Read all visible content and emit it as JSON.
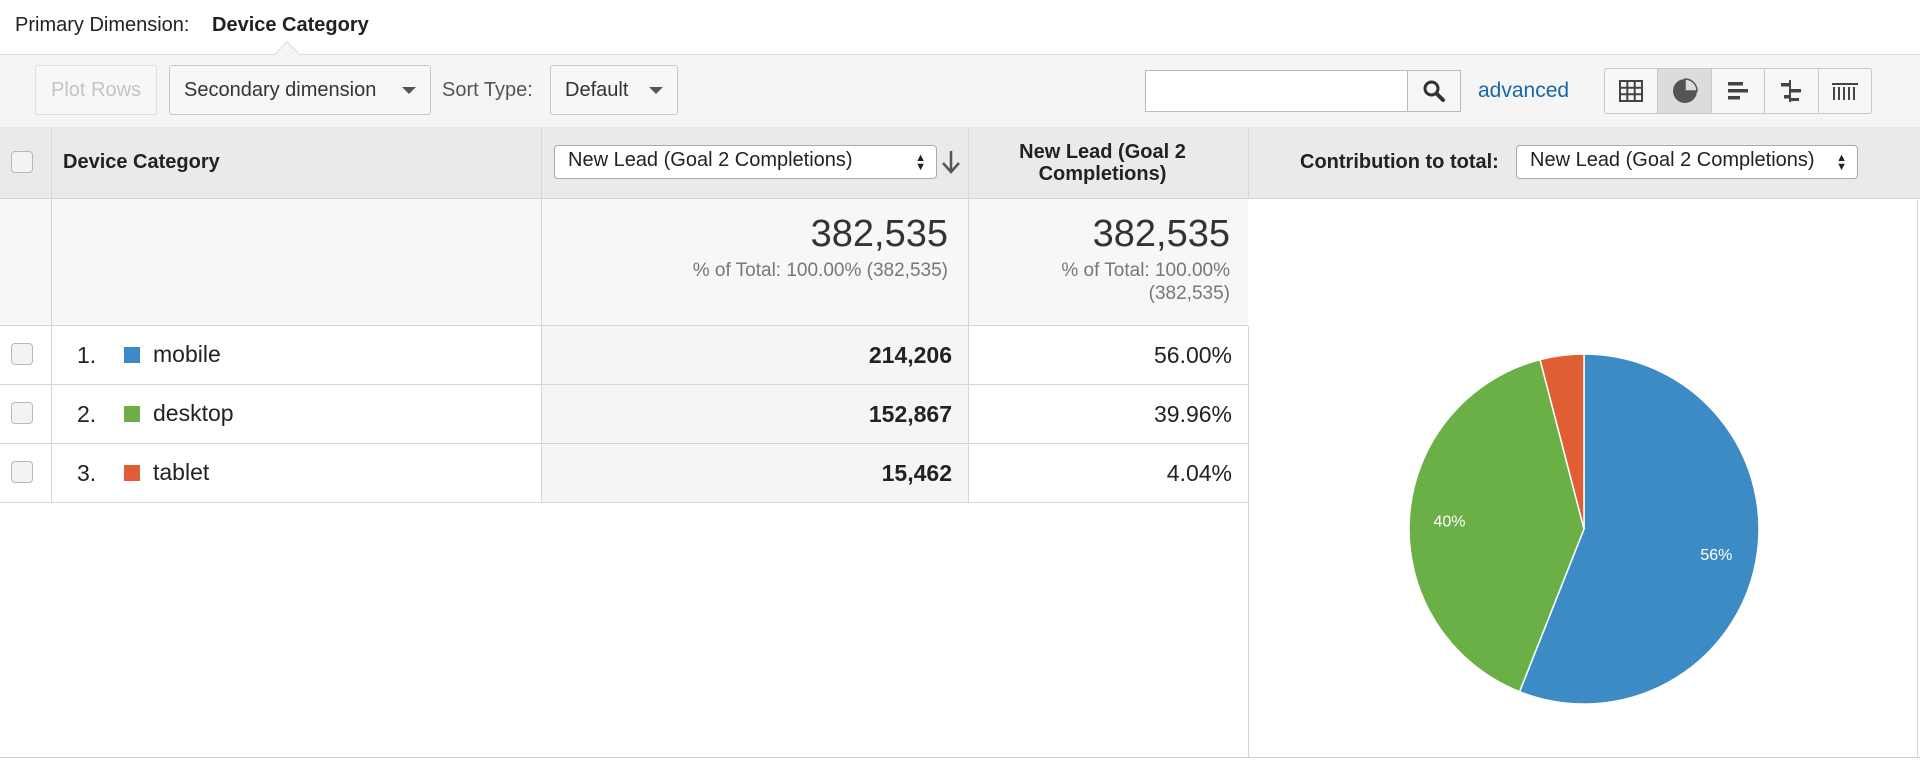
{
  "primary_dimension": {
    "label": "Primary Dimension:",
    "value": "Device Category"
  },
  "toolbar": {
    "plot_rows": "Plot Rows",
    "secondary_dimension": "Secondary dimension",
    "sort_type_label": "Sort Type:",
    "sort_type_value": "Default",
    "search_value": "",
    "advanced": "advanced",
    "views": [
      "table-icon",
      "pie-chart-icon",
      "bar-chart-icon",
      "comparison-icon",
      "pivot-icon"
    ],
    "active_view": "pie-chart-icon"
  },
  "table": {
    "col_device": "Device Category",
    "col_metric_select": "New Lead (Goal 2 Completions)",
    "col_metric2": "New Lead (Goal 2 Completions)",
    "col_contrib_label": "Contribution to total:",
    "col_contrib_select": "New Lead (Goal 2 Completions)",
    "totals": {
      "metric_total": "382,535",
      "metric_sub": "% of Total: 100.00% (382,535)",
      "metric2_total": "382,535",
      "metric2_sub_line1": "% of Total: 100.00%",
      "metric2_sub_line2": "(382,535)"
    },
    "rows": [
      {
        "index": "1.",
        "label": "mobile",
        "value": "214,206",
        "percent": "56.00%",
        "color": "#3d8bc4"
      },
      {
        "index": "2.",
        "label": "desktop",
        "value": "152,867",
        "percent": "39.96%",
        "color": "#6ab046"
      },
      {
        "index": "3.",
        "label": "tablet",
        "value": "15,462",
        "percent": "4.04%",
        "color": "#e05e33"
      }
    ]
  },
  "chart_data": {
    "type": "pie",
    "categories": [
      "mobile",
      "desktop",
      "tablet"
    ],
    "values": [
      56.0,
      39.96,
      4.04
    ],
    "labels": [
      "56%",
      "40%",
      ""
    ],
    "colors": [
      "#3d8bc4",
      "#6ab046",
      "#e05e33"
    ]
  }
}
